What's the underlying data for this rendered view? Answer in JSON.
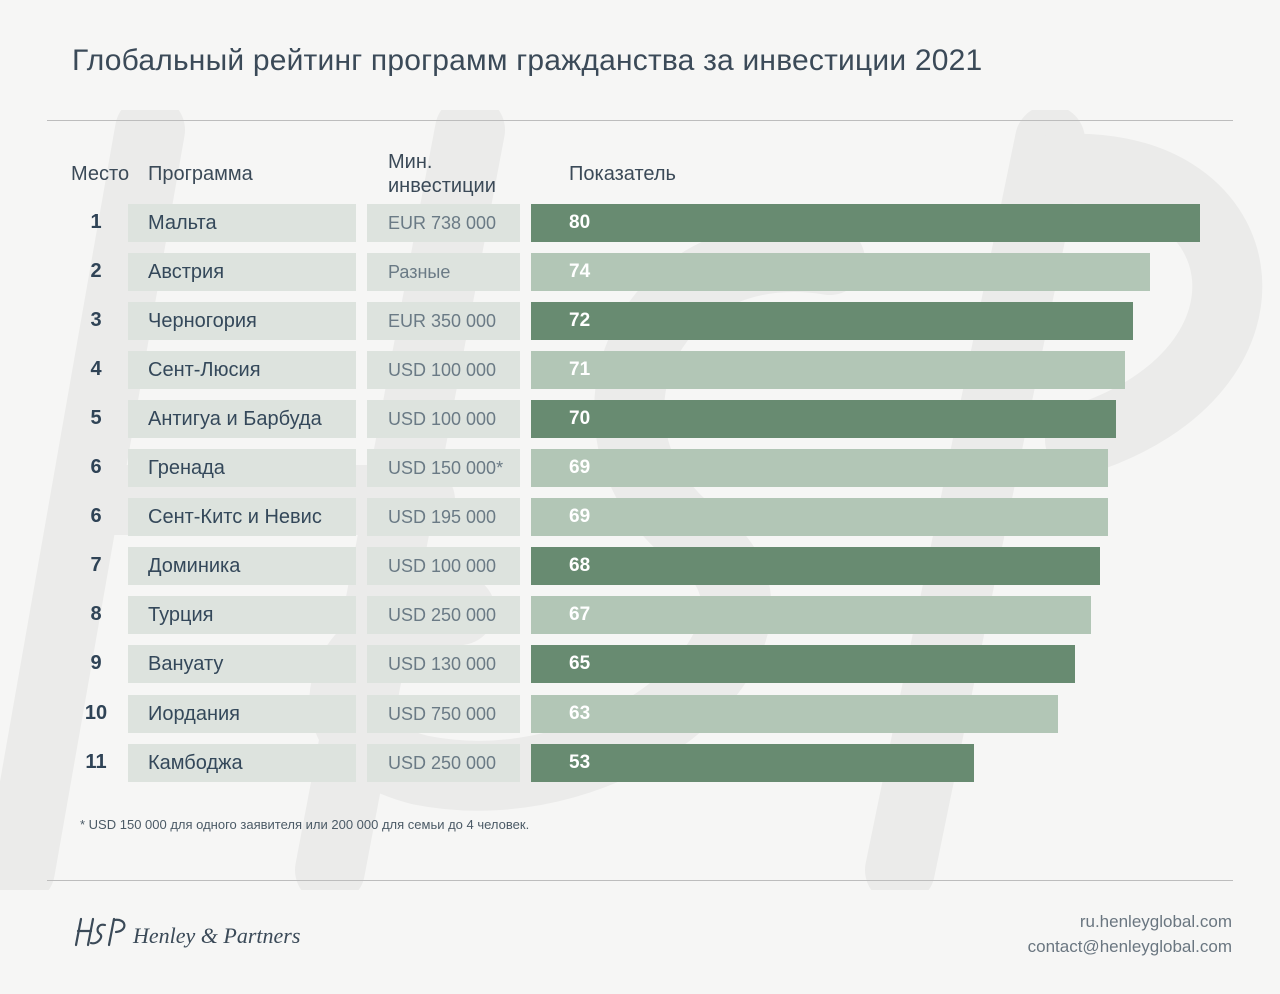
{
  "title": "Глобальный рейтинг программ гражданства за инвестиции 2021",
  "headers": {
    "place": "Место",
    "program": "Программа",
    "investment_line1": "Мин.",
    "investment_line2": "инвестиции",
    "score": "Показатель"
  },
  "rows": [
    {
      "rank": "1",
      "program": "Мальта",
      "investment": "EUR 738 000",
      "score": "80"
    },
    {
      "rank": "2",
      "program": "Австрия",
      "investment": "Разные",
      "score": "74"
    },
    {
      "rank": "3",
      "program": "Черногория",
      "investment": "EUR 350 000",
      "score": "72"
    },
    {
      "rank": "4",
      "program": "Сент-Люсия",
      "investment": "USD 100 000",
      "score": "71"
    },
    {
      "rank": "5",
      "program": "Антигуа и Барбуда",
      "investment": "USD 100 000",
      "score": "70"
    },
    {
      "rank": "6",
      "program": "Гренада",
      "investment": "USD 150 000*",
      "score": "69"
    },
    {
      "rank": "6",
      "program": "Сент-Китс и Невис",
      "investment": "USD 195 000",
      "score": "69"
    },
    {
      "rank": "7",
      "program": "Доминика",
      "investment": "USD 100 000",
      "score": "68"
    },
    {
      "rank": "8",
      "program": "Турция",
      "investment": "USD 250 000",
      "score": "67"
    },
    {
      "rank": "9",
      "program": "Вануату",
      "investment": "USD 130 000",
      "score": "65"
    },
    {
      "rank": "10",
      "program": "Иордания",
      "investment": "USD 750 000",
      "score": "63"
    },
    {
      "rank": "11",
      "program": "Камбоджа",
      "investment": "USD 250 000",
      "score": "53"
    }
  ],
  "chart_data": {
    "type": "bar",
    "orientation": "horizontal",
    "title": "Глобальный рейтинг программ гражданства за инвестиции 2021",
    "categories": [
      "Мальта",
      "Австрия",
      "Черногория",
      "Сент-Люсия",
      "Антигуа и Барбуда",
      "Гренада",
      "Сент-Китс и Невис",
      "Доминика",
      "Турция",
      "Вануату",
      "Иордания",
      "Камбоджа"
    ],
    "values": [
      80,
      74,
      72,
      71,
      70,
      69,
      69,
      68,
      67,
      65,
      63,
      53
    ],
    "xlim": [
      0,
      80
    ],
    "grid": false,
    "legend": "none",
    "colors": {
      "dark": "#688b71",
      "light": "#b2c6b6"
    },
    "shades": [
      "dark",
      "light",
      "dark",
      "light",
      "dark",
      "light",
      "light",
      "dark",
      "light",
      "dark",
      "light",
      "dark"
    ]
  },
  "footnote": "* USD 150 000 для одного заявителя или 200 000 для семьи до 4 человек.",
  "logo": {
    "text": "Henley & Partners",
    "mark": "H&P",
    "icon": "hp-monogram-icon"
  },
  "contact": {
    "website": "ru.henleyglobal.com",
    "email": "contact@henleyglobal.com"
  }
}
